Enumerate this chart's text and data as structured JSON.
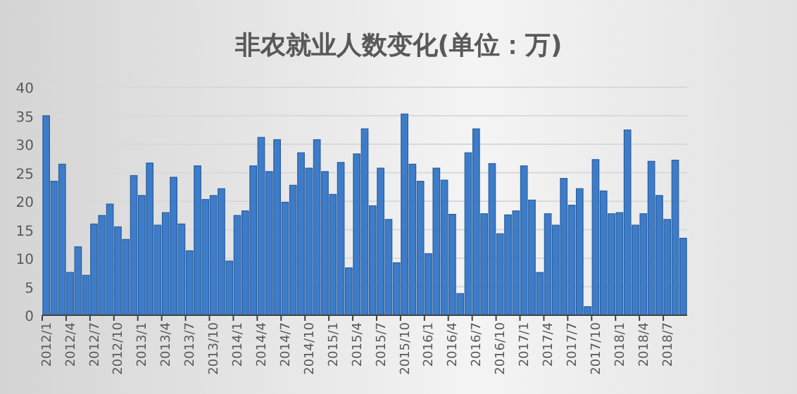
{
  "chart_data": {
    "type": "bar",
    "title": "非农就业人数变化(单位：万)",
    "categories": [
      "2012/1",
      null,
      null,
      "2012/4",
      null,
      null,
      "2012/7",
      null,
      null,
      "2012/10",
      null,
      null,
      "2013/1",
      null,
      null,
      "2013/4",
      null,
      null,
      "2013/7",
      null,
      null,
      "2013/10",
      null,
      null,
      "2014/1",
      null,
      null,
      "2014/4",
      null,
      null,
      "2014/7",
      null,
      null,
      "2014/10",
      null,
      null,
      "2015/1",
      null,
      null,
      "2015/4",
      null,
      null,
      "2015/7",
      null,
      null,
      "2015/10",
      null,
      null,
      "2016/1",
      null,
      null,
      "2016/4",
      null,
      null,
      "2016/7",
      null,
      null,
      "2016/10",
      null,
      null,
      "2017/1",
      null,
      null,
      "2017/4",
      null,
      null,
      "2017/7",
      null,
      null,
      "2017/10",
      null,
      null,
      "2018/1",
      null,
      null,
      "2018/4",
      null,
      null,
      "2018/7",
      null,
      null
    ],
    "values": [
      35,
      23.5,
      26.5,
      7.5,
      12,
      7,
      16,
      17.5,
      19.5,
      15.5,
      13.3,
      24.5,
      21,
      26.7,
      15.8,
      18,
      24.2,
      16,
      11.3,
      26.2,
      20.3,
      21,
      22.2,
      9.5,
      17.5,
      18.3,
      26.2,
      31.2,
      25.2,
      30.8,
      19.8,
      22.8,
      28.5,
      25.8,
      30.8,
      25.2,
      21.2,
      26.8,
      8.3,
      28.3,
      32.7,
      19.2,
      25.8,
      16.8,
      9.2,
      35.3,
      26.5,
      23.5,
      10.8,
      25.8,
      23.7,
      17.7,
      3.8,
      28.5,
      32.7,
      17.8,
      26.6,
      14.3,
      17.6,
      18.3,
      26.2,
      20.2,
      7.5,
      17.8,
      15.8,
      24,
      19.3,
      22.2,
      1.5,
      27.3,
      21.8,
      17.8,
      18,
      32.5,
      15.8,
      17.8,
      27,
      21,
      16.8,
      27.2,
      13.5
    ],
    "color": "#3d7cc9",
    "ylim": [
      0,
      40
    ],
    "yticks": [
      0,
      5,
      10,
      15,
      20,
      25,
      30,
      35,
      40
    ],
    "grid": "y"
  }
}
